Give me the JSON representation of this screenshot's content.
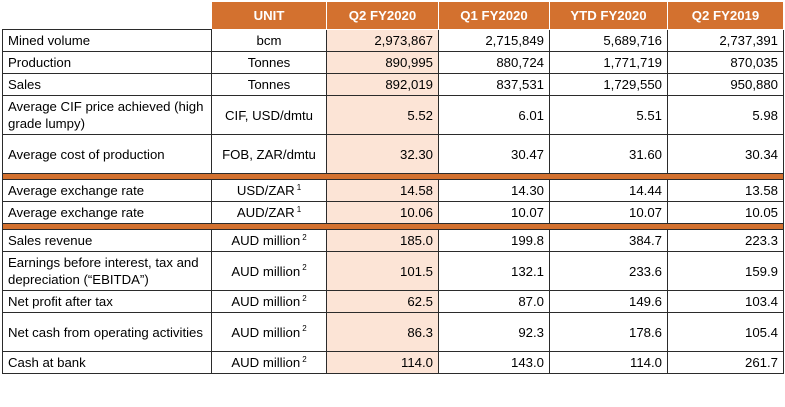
{
  "headers": [
    "",
    "UNIT",
    "Q2 FY2020",
    "Q1 FY2020",
    "YTD FY2020",
    "Q2 FY2019"
  ],
  "colors": {
    "accent": "#d3712f",
    "highlight": "#fce4d6"
  },
  "rows": [
    {
      "label": "Mined volume",
      "unit": "bcm",
      "sup": "",
      "values": [
        "2,973,867",
        "2,715,849",
        "5,689,716",
        "2,737,391"
      ]
    },
    {
      "label": "Production",
      "unit": "Tonnes",
      "sup": "",
      "values": [
        "890,995",
        "880,724",
        "1,771,719",
        "870,035"
      ]
    },
    {
      "label": "Sales",
      "unit": "Tonnes",
      "sup": "",
      "values": [
        "892,019",
        "837,531",
        "1,729,550",
        "950,880"
      ]
    },
    {
      "label": "Average CIF price achieved (high grade lumpy)",
      "unit": "CIF, USD/dmtu",
      "sup": "",
      "values": [
        "5.52",
        "6.01",
        "5.51",
        "5.98"
      ]
    },
    {
      "label": "Average cost of production",
      "unit": "FOB, ZAR/dmtu",
      "sup": "",
      "values": [
        "32.30",
        "30.47",
        "31.60",
        "30.34"
      ]
    },
    {
      "label": "Average exchange rate",
      "unit": "USD/ZAR",
      "sup": "1",
      "values": [
        "14.58",
        "14.30",
        "14.44",
        "13.58"
      ]
    },
    {
      "label": "Average exchange rate",
      "unit": "AUD/ZAR",
      "sup": "1",
      "values": [
        "10.06",
        "10.07",
        "10.07",
        "10.05"
      ]
    },
    {
      "label": "Sales revenue",
      "unit": "AUD million",
      "sup": "2",
      "values": [
        "185.0",
        "199.8",
        "384.7",
        "223.3"
      ]
    },
    {
      "label": "Earnings before interest, tax and depreciation (“EBITDA”)",
      "unit": "AUD million",
      "sup": "2",
      "values": [
        "101.5",
        "132.1",
        "233.6",
        "159.9"
      ]
    },
    {
      "label": "Net profit after tax",
      "unit": "AUD million",
      "sup": "2",
      "values": [
        "62.5",
        "87.0",
        "149.6",
        "103.4"
      ]
    },
    {
      "label": "Net cash from operating activities",
      "unit": "AUD million",
      "sup": "2",
      "values": [
        "86.3",
        "92.3",
        "178.6",
        "105.4"
      ]
    },
    {
      "label": "Cash at bank",
      "unit": "AUD million",
      "sup": "2",
      "values": [
        "114.0",
        "143.0",
        "114.0",
        "261.7"
      ]
    }
  ]
}
